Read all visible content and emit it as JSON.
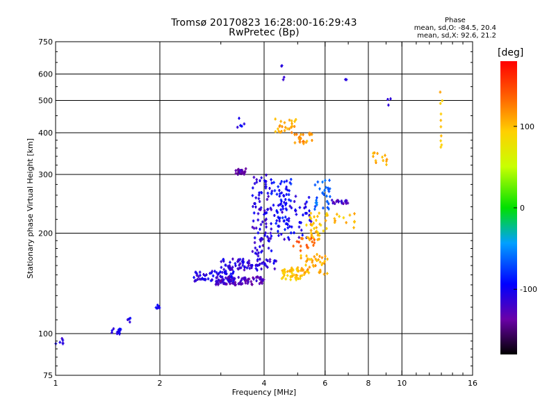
{
  "header": {
    "title_line1": "Tromsø 20170823 16:28:00-16:29:43",
    "title_line2": "RwPretec (Bp)",
    "stats_title": "Phase",
    "stats_o": "mean, sd,O: -84.5, 20.4",
    "stats_x": "mean, sd,X:  92.6, 21.2"
  },
  "colorbar": {
    "title": "[deg]",
    "ticks": [
      "100",
      "0",
      "-100"
    ],
    "tick_values": [
      100,
      0,
      -100
    ],
    "range": [
      -180,
      180
    ]
  },
  "chart_data": {
    "type": "scatter",
    "title": "Tromsø 20170823 16:28:00-16:29:43",
    "subtitle": "RwPretec (Bp)",
    "xlabel": "Frequency [MHz]",
    "ylabel": "Stationary phase Virtual Height [km]",
    "xscale": "log",
    "yscale": "log",
    "xlim": [
      1,
      16
    ],
    "ylim": [
      75,
      750
    ],
    "xticks": [
      1,
      2,
      4,
      6,
      8,
      10,
      16
    ],
    "xtick_labels": [
      "1",
      "2",
      "4",
      "6",
      "8",
      "10",
      "16"
    ],
    "yticks": [
      75,
      100,
      200,
      300,
      400,
      500,
      600,
      750
    ],
    "ytick_labels": [
      "75",
      "100",
      "200",
      "300",
      "400",
      "500",
      "600",
      "750"
    ],
    "x_gridlines": [
      2,
      4,
      6,
      8,
      10
    ],
    "y_gridlines": [
      100,
      200,
      300,
      400,
      500,
      600
    ],
    "grid": true,
    "legend": "colorbar right: phase in degrees",
    "colormap": "rainbow",
    "color_range": [
      -180,
      180
    ],
    "clusters": [
      {
        "x": [
          1.0,
          1.05
        ],
        "y": [
          93,
          97
        ],
        "phase": -105,
        "n": 6
      },
      {
        "x": [
          1.45,
          1.55
        ],
        "y": [
          99,
          104
        ],
        "phase": -100,
        "n": 14
      },
      {
        "x": [
          1.6,
          1.65
        ],
        "y": [
          107,
          114
        ],
        "phase": -100,
        "n": 4
      },
      {
        "x": [
          1.95,
          2.0
        ],
        "y": [
          118,
          124
        ],
        "phase": -100,
        "n": 6
      },
      {
        "x": [
          2.5,
          3.3
        ],
        "y": [
          143,
          154
        ],
        "phase": -105,
        "n": 60
      },
      {
        "x": [
          2.9,
          4.0
        ],
        "y": [
          140,
          148
        ],
        "phase": -125,
        "n": 90
      },
      {
        "x": [
          3.0,
          4.4
        ],
        "y": [
          155,
          168
        ],
        "phase": -112,
        "n": 80
      },
      {
        "x": [
          3.7,
          4.2
        ],
        "y": [
          170,
          300
        ],
        "phase": -110,
        "n": 90
      },
      {
        "x": [
          3.3,
          3.6
        ],
        "y": [
          300,
          312
        ],
        "phase": -135,
        "n": 25
      },
      {
        "x": [
          4.2,
          4.8
        ],
        "y": [
          200,
          290
        ],
        "phase": -90,
        "n": 60
      },
      {
        "x": [
          4.4,
          5.5
        ],
        "y": [
          190,
          260
        ],
        "phase": -105,
        "n": 50
      },
      {
        "x": [
          5.6,
          6.2
        ],
        "y": [
          235,
          290
        ],
        "phase": -65,
        "n": 30
      },
      {
        "x": [
          6.2,
          7.0
        ],
        "y": [
          245,
          252
        ],
        "phase": -120,
        "n": 20
      },
      {
        "x": [
          4.3,
          5.0
        ],
        "y": [
          400,
          440
        ],
        "phase": 110,
        "n": 25
      },
      {
        "x": [
          4.9,
          5.5
        ],
        "y": [
          370,
          400
        ],
        "phase": 115,
        "n": 25
      },
      {
        "x": [
          4.5,
          5.2
        ],
        "y": [
          145,
          158
        ],
        "phase": 95,
        "n": 45
      },
      {
        "x": [
          5.1,
          6.1
        ],
        "y": [
          150,
          175
        ],
        "phase": 108,
        "n": 45
      },
      {
        "x": [
          5.3,
          6.1
        ],
        "y": [
          190,
          230
        ],
        "phase": 100,
        "n": 40
      },
      {
        "x": [
          4.8,
          5.6
        ],
        "y": [
          175,
          195
        ],
        "phase": 140,
        "n": 15
      },
      {
        "x": [
          6.3,
          7.3
        ],
        "y": [
          205,
          230
        ],
        "phase": 100,
        "n": 12
      },
      {
        "x": [
          8.2,
          9.1
        ],
        "y": [
          320,
          350
        ],
        "phase": 110,
        "n": 12
      },
      {
        "x": [
          12.9,
          13.1
        ],
        "y": [
          355,
          560
        ],
        "phase": 100,
        "n": 10
      },
      {
        "x": [
          4.4,
          4.6
        ],
        "y": [
          560,
          640
        ],
        "phase": -110,
        "n": 4
      },
      {
        "x": [
          6.8,
          7.0
        ],
        "y": [
          560,
          580
        ],
        "phase": -100,
        "n": 2
      },
      {
        "x": [
          9.0,
          9.3
        ],
        "y": [
          460,
          520
        ],
        "phase": -110,
        "n": 3
      },
      {
        "x": [
          3.3,
          3.6
        ],
        "y": [
          410,
          460
        ],
        "phase": -100,
        "n": 5
      }
    ]
  }
}
